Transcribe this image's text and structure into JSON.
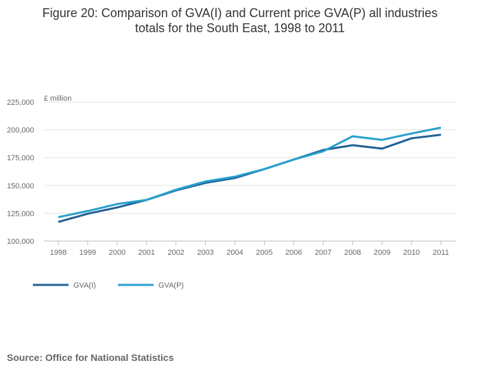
{
  "chart_data": {
    "type": "line",
    "title_line1": "Figure 20: Comparison of GVA(I) and Current price GVA(P) all industries",
    "title_line2": "totals for the South East, 1998 to 2011",
    "ylabel": "£ million",
    "xlabel": "",
    "ylim": [
      100000,
      225000
    ],
    "yticks": [
      100000,
      125000,
      150000,
      175000,
      200000,
      225000
    ],
    "ytick_labels": [
      "100,000",
      "125,000",
      "150,000",
      "175,000",
      "200,000",
      "225,000"
    ],
    "categories": [
      "1998",
      "1999",
      "2000",
      "2001",
      "2002",
      "2003",
      "2004",
      "2005",
      "2006",
      "2007",
      "2008",
      "2009",
      "2010",
      "2011"
    ],
    "grid": true,
    "legend_position": "bottom-left",
    "series": [
      {
        "name": "GVA(I)",
        "color": "#206095",
        "values": [
          117200,
          124600,
          130200,
          137000,
          145600,
          152300,
          156700,
          164700,
          173300,
          181900,
          186200,
          183100,
          192400,
          195600
        ]
      },
      {
        "name": "GVA(P)",
        "color": "#27a0cc",
        "values": [
          121500,
          127000,
          133300,
          137000,
          146200,
          153600,
          157900,
          164700,
          173300,
          180700,
          194200,
          191000,
          196700,
          202000
        ]
      }
    ]
  },
  "source": "Source: Office for National Statistics"
}
